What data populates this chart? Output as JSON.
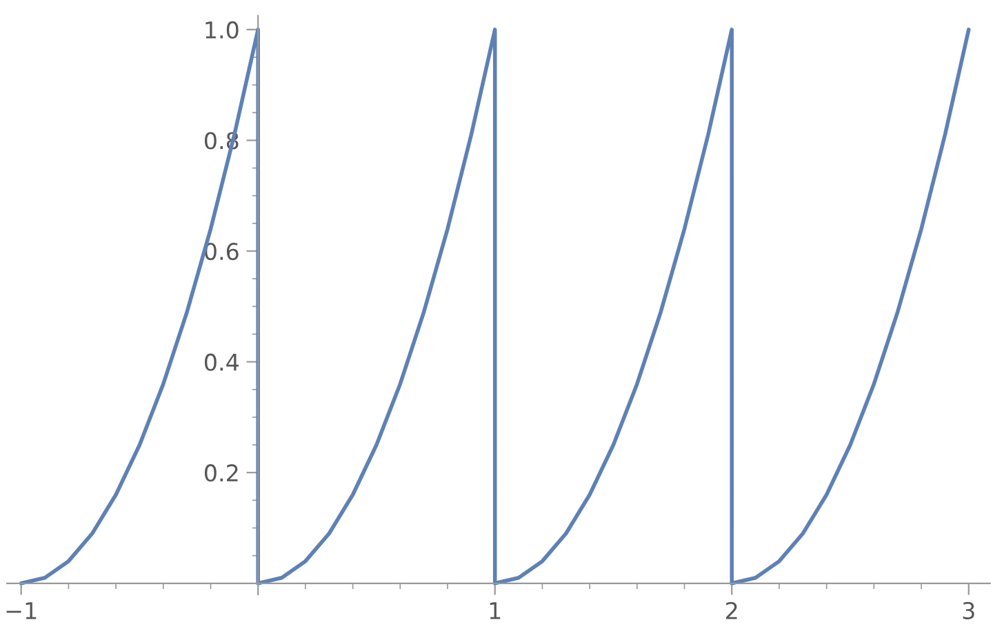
{
  "chart_data": {
    "type": "line",
    "x": [
      -1,
      -0.9,
      -0.8,
      -0.7,
      -0.6,
      -0.5,
      -0.4,
      -0.3,
      -0.2,
      -0.1,
      0,
      0,
      0.1,
      0.2,
      0.3,
      0.4,
      0.5,
      0.6,
      0.7,
      0.8,
      0.9,
      1,
      1,
      1.1,
      1.2,
      1.3,
      1.4,
      1.5,
      1.6,
      1.7,
      1.8,
      1.9,
      2,
      2,
      2.1,
      2.2,
      2.3,
      2.4,
      2.5,
      2.6,
      2.7,
      2.8,
      2.9,
      3
    ],
    "series": [
      {
        "color": "#5e81b5",
        "values": [
          0,
          0.01,
          0.04,
          0.09,
          0.16,
          0.25,
          0.36,
          0.49,
          0.64,
          0.81,
          1,
          0,
          0.01,
          0.04,
          0.09,
          0.16,
          0.25,
          0.36,
          0.49,
          0.64,
          0.81,
          1,
          0,
          0.01,
          0.04,
          0.09,
          0.16,
          0.25,
          0.36,
          0.49,
          0.64,
          0.81,
          1,
          0,
          0.01,
          0.04,
          0.09,
          0.16,
          0.25,
          0.36,
          0.49,
          0.64,
          0.81,
          1
        ]
      }
    ],
    "xlim": [
      -1.06,
      3.09
    ],
    "ylim": [
      -0.02,
      1.025
    ],
    "xticks": [
      {
        "value": -1,
        "label": "−1"
      },
      {
        "value": -0.8,
        "label": null
      },
      {
        "value": -0.6,
        "label": null
      },
      {
        "value": -0.4,
        "label": null
      },
      {
        "value": -0.2,
        "label": null
      },
      {
        "value": 0.2,
        "label": null
      },
      {
        "value": 0.4,
        "label": null
      },
      {
        "value": 0.6,
        "label": null
      },
      {
        "value": 0.8,
        "label": null
      },
      1,
      {
        "value": 1.2,
        "label": null
      },
      {
        "value": 1.4,
        "label": null
      },
      {
        "value": 1.6,
        "label": null
      },
      {
        "value": 1.8,
        "label": null
      },
      2,
      {
        "value": 2.2,
        "label": null
      },
      {
        "value": 2.4,
        "label": null
      },
      {
        "value": 2.6,
        "label": null
      },
      {
        "value": 2.8,
        "label": null
      },
      3
    ],
    "yticks": [
      {
        "value": 0.05,
        "label": null
      },
      {
        "value": 0.1,
        "label": null
      },
      {
        "value": 0.15,
        "label": null
      },
      0.2,
      {
        "value": 0.25,
        "label": null
      },
      {
        "value": 0.3,
        "label": null
      },
      {
        "value": 0.35,
        "label": null
      },
      0.4,
      {
        "value": 0.45,
        "label": null
      },
      {
        "value": 0.5,
        "label": null
      },
      {
        "value": 0.55,
        "label": null
      },
      0.6,
      {
        "value": 0.65,
        "label": null
      },
      {
        "value": 0.7,
        "label": null
      },
      {
        "value": 0.75,
        "label": null
      },
      0.8,
      {
        "value": 0.85,
        "label": null
      },
      {
        "value": 0.9,
        "label": null
      },
      {
        "value": 0.95,
        "label": null
      },
      {
        "value": 1,
        "label": "1.0"
      }
    ],
    "grid": false,
    "legend": false,
    "marker": "none",
    "line_style": "solid"
  }
}
